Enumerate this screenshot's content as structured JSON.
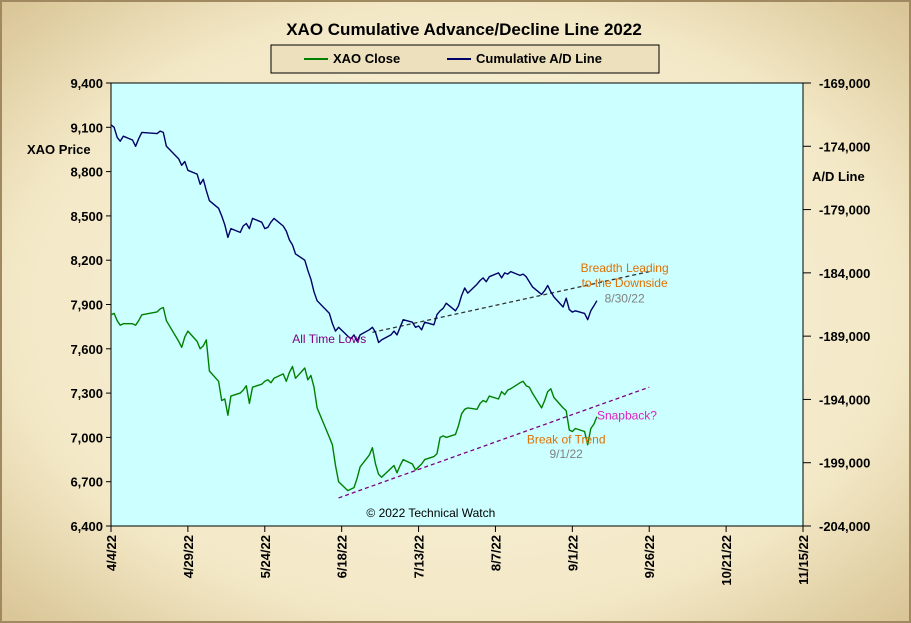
{
  "chart_data": {
    "type": "line",
    "title": "XAO Cumulative Advance/Decline Line 2022",
    "legend": [
      {
        "name": "XAO Close",
        "color": "#008000"
      },
      {
        "name": "Cumulative A/D Line",
        "color": "#000066"
      }
    ],
    "legend_position": "top-center",
    "ylabel_left": "XAO Price",
    "ylabel_right": "A/D Line",
    "ylim_left": [
      6400,
      9400
    ],
    "ylim_right": [
      -204000,
      -169000
    ],
    "y_ticks_left": [
      "9,400",
      "9,100",
      "8,800",
      "8,500",
      "8,200",
      "7,900",
      "7,600",
      "7,300",
      "7,000",
      "6,700",
      "6,400"
    ],
    "y_ticks_right": [
      "-169,000",
      "-174,000",
      "-179,000",
      "-184,000",
      "-189,000",
      "-194,000",
      "-199,000",
      "-204,000"
    ],
    "x_ticks": [
      "4/4/22",
      "4/29/22",
      "5/24/22",
      "6/18/22",
      "7/13/22",
      "8/7/22",
      "9/1/22",
      "9/26/22",
      "10/21/22",
      "11/15/22"
    ],
    "xlim": [
      "2022-04-04",
      "2022-11-15"
    ],
    "grid": false,
    "plot_background": "#ccffff",
    "series": [
      {
        "name": "XAO Close",
        "axis": "left",
        "color": "#008000",
        "points": [
          [
            "2022-04-04",
            7830
          ],
          [
            "2022-04-05",
            7840
          ],
          [
            "2022-04-06",
            7790
          ],
          [
            "2022-04-07",
            7760
          ],
          [
            "2022-04-08",
            7770
          ],
          [
            "2022-04-11",
            7770
          ],
          [
            "2022-04-12",
            7760
          ],
          [
            "2022-04-13",
            7790
          ],
          [
            "2022-04-14",
            7830
          ],
          [
            "2022-04-19",
            7850
          ],
          [
            "2022-04-20",
            7870
          ],
          [
            "2022-04-21",
            7880
          ],
          [
            "2022-04-22",
            7790
          ],
          [
            "2022-04-26",
            7650
          ],
          [
            "2022-04-27",
            7610
          ],
          [
            "2022-04-28",
            7680
          ],
          [
            "2022-04-29",
            7720
          ],
          [
            "2022-05-02",
            7650
          ],
          [
            "2022-05-03",
            7600
          ],
          [
            "2022-05-04",
            7620
          ],
          [
            "2022-05-05",
            7660
          ],
          [
            "2022-05-06",
            7450
          ],
          [
            "2022-05-09",
            7380
          ],
          [
            "2022-05-10",
            7250
          ],
          [
            "2022-05-11",
            7260
          ],
          [
            "2022-05-12",
            7150
          ],
          [
            "2022-05-13",
            7280
          ],
          [
            "2022-05-16",
            7300
          ],
          [
            "2022-05-17",
            7320
          ],
          [
            "2022-05-18",
            7350
          ],
          [
            "2022-05-19",
            7230
          ],
          [
            "2022-05-20",
            7340
          ],
          [
            "2022-05-23",
            7360
          ],
          [
            "2022-05-24",
            7380
          ],
          [
            "2022-05-25",
            7390
          ],
          [
            "2022-05-26",
            7370
          ],
          [
            "2022-05-27",
            7400
          ],
          [
            "2022-05-30",
            7430
          ],
          [
            "2022-05-31",
            7380
          ],
          [
            "2022-06-01",
            7440
          ],
          [
            "2022-06-02",
            7480
          ],
          [
            "2022-06-03",
            7400
          ],
          [
            "2022-06-06",
            7470
          ],
          [
            "2022-06-07",
            7390
          ],
          [
            "2022-06-08",
            7420
          ],
          [
            "2022-06-09",
            7340
          ],
          [
            "2022-06-10",
            7200
          ],
          [
            "2022-06-14",
            7000
          ],
          [
            "2022-06-15",
            6950
          ],
          [
            "2022-06-16",
            6810
          ],
          [
            "2022-06-17",
            6700
          ],
          [
            "2022-06-20",
            6640
          ],
          [
            "2022-06-21",
            6650
          ],
          [
            "2022-06-22",
            6660
          ],
          [
            "2022-06-23",
            6720
          ],
          [
            "2022-06-24",
            6800
          ],
          [
            "2022-06-27",
            6880
          ],
          [
            "2022-06-28",
            6930
          ],
          [
            "2022-06-29",
            6820
          ],
          [
            "2022-06-30",
            6750
          ],
          [
            "2022-07-01",
            6730
          ],
          [
            "2022-07-04",
            6790
          ],
          [
            "2022-07-05",
            6810
          ],
          [
            "2022-07-06",
            6760
          ],
          [
            "2022-07-07",
            6810
          ],
          [
            "2022-07-08",
            6850
          ],
          [
            "2022-07-11",
            6820
          ],
          [
            "2022-07-12",
            6780
          ],
          [
            "2022-07-13",
            6800
          ],
          [
            "2022-07-14",
            6820
          ],
          [
            "2022-07-15",
            6850
          ],
          [
            "2022-07-18",
            6870
          ],
          [
            "2022-07-19",
            6890
          ],
          [
            "2022-07-20",
            7000
          ],
          [
            "2022-07-21",
            7010
          ],
          [
            "2022-07-22",
            7000
          ],
          [
            "2022-07-25",
            7020
          ],
          [
            "2022-07-26",
            7080
          ],
          [
            "2022-07-27",
            7160
          ],
          [
            "2022-07-28",
            7190
          ],
          [
            "2022-07-29",
            7200
          ],
          [
            "2022-08-01",
            7190
          ],
          [
            "2022-08-02",
            7230
          ],
          [
            "2022-08-03",
            7250
          ],
          [
            "2022-08-04",
            7240
          ],
          [
            "2022-08-05",
            7280
          ],
          [
            "2022-08-08",
            7260
          ],
          [
            "2022-08-09",
            7310
          ],
          [
            "2022-08-10",
            7290
          ],
          [
            "2022-08-11",
            7320
          ],
          [
            "2022-08-12",
            7330
          ],
          [
            "2022-08-15",
            7370
          ],
          [
            "2022-08-16",
            7380
          ],
          [
            "2022-08-17",
            7350
          ],
          [
            "2022-08-18",
            7340
          ],
          [
            "2022-08-19",
            7300
          ],
          [
            "2022-08-22",
            7200
          ],
          [
            "2022-08-23",
            7250
          ],
          [
            "2022-08-24",
            7310
          ],
          [
            "2022-08-25",
            7330
          ],
          [
            "2022-08-26",
            7270
          ],
          [
            "2022-08-29",
            7200
          ],
          [
            "2022-08-30",
            7180
          ],
          [
            "2022-08-31",
            7050
          ],
          [
            "2022-09-01",
            7040
          ],
          [
            "2022-09-02",
            7060
          ],
          [
            "2022-09-05",
            7040
          ],
          [
            "2022-09-06",
            6950
          ],
          [
            "2022-09-07",
            7060
          ],
          [
            "2022-09-08",
            7090
          ],
          [
            "2022-09-09",
            7140
          ]
        ]
      },
      {
        "name": "Cumulative A/D Line",
        "axis": "right",
        "color": "#000066",
        "points": [
          [
            "2022-04-04",
            -172300
          ],
          [
            "2022-04-05",
            -172500
          ],
          [
            "2022-04-06",
            -173300
          ],
          [
            "2022-04-07",
            -173600
          ],
          [
            "2022-04-08",
            -173200
          ],
          [
            "2022-04-11",
            -173500
          ],
          [
            "2022-04-12",
            -174000
          ],
          [
            "2022-04-13",
            -173400
          ],
          [
            "2022-04-14",
            -172900
          ],
          [
            "2022-04-19",
            -173000
          ],
          [
            "2022-04-20",
            -172800
          ],
          [
            "2022-04-21",
            -172900
          ],
          [
            "2022-04-22",
            -174000
          ],
          [
            "2022-04-26",
            -175000
          ],
          [
            "2022-04-27",
            -175500
          ],
          [
            "2022-04-28",
            -175200
          ],
          [
            "2022-04-29",
            -175900
          ],
          [
            "2022-05-02",
            -176200
          ],
          [
            "2022-05-03",
            -177000
          ],
          [
            "2022-05-04",
            -176600
          ],
          [
            "2022-05-05",
            -177500
          ],
          [
            "2022-05-06",
            -178300
          ],
          [
            "2022-05-09",
            -178900
          ],
          [
            "2022-05-10",
            -179500
          ],
          [
            "2022-05-11",
            -180200
          ],
          [
            "2022-05-12",
            -181200
          ],
          [
            "2022-05-13",
            -180500
          ],
          [
            "2022-05-16",
            -180800
          ],
          [
            "2022-05-17",
            -180300
          ],
          [
            "2022-05-18",
            -180100
          ],
          [
            "2022-05-19",
            -180500
          ],
          [
            "2022-05-20",
            -179700
          ],
          [
            "2022-05-23",
            -180000
          ],
          [
            "2022-05-24",
            -180500
          ],
          [
            "2022-05-25",
            -180400
          ],
          [
            "2022-05-26",
            -180000
          ],
          [
            "2022-05-27",
            -179700
          ],
          [
            "2022-05-30",
            -180300
          ],
          [
            "2022-05-31",
            -180700
          ],
          [
            "2022-06-01",
            -181400
          ],
          [
            "2022-06-02",
            -181800
          ],
          [
            "2022-06-03",
            -182500
          ],
          [
            "2022-06-06",
            -183000
          ],
          [
            "2022-06-07",
            -183800
          ],
          [
            "2022-06-08",
            -184500
          ],
          [
            "2022-06-09",
            -185500
          ],
          [
            "2022-06-10",
            -186200
          ],
          [
            "2022-06-14",
            -187200
          ],
          [
            "2022-06-15",
            -188000
          ],
          [
            "2022-06-16",
            -188600
          ],
          [
            "2022-06-17",
            -188300
          ],
          [
            "2022-06-20",
            -189000
          ],
          [
            "2022-06-21",
            -189200
          ],
          [
            "2022-06-22",
            -188900
          ],
          [
            "2022-06-23",
            -189400
          ],
          [
            "2022-06-24",
            -188900
          ],
          [
            "2022-06-27",
            -188500
          ],
          [
            "2022-06-28",
            -188300
          ],
          [
            "2022-06-29",
            -188700
          ],
          [
            "2022-06-30",
            -189500
          ],
          [
            "2022-07-01",
            -189300
          ],
          [
            "2022-07-04",
            -188900
          ],
          [
            "2022-07-05",
            -188600
          ],
          [
            "2022-07-06",
            -188900
          ],
          [
            "2022-07-07",
            -188300
          ],
          [
            "2022-07-08",
            -187700
          ],
          [
            "2022-07-11",
            -187900
          ],
          [
            "2022-07-12",
            -188300
          ],
          [
            "2022-07-13",
            -188200
          ],
          [
            "2022-07-14",
            -188500
          ],
          [
            "2022-07-15",
            -187900
          ],
          [
            "2022-07-18",
            -188100
          ],
          [
            "2022-07-19",
            -187300
          ],
          [
            "2022-07-20",
            -187000
          ],
          [
            "2022-07-21",
            -186800
          ],
          [
            "2022-07-22",
            -186400
          ],
          [
            "2022-07-25",
            -187000
          ],
          [
            "2022-07-26",
            -186600
          ],
          [
            "2022-07-27",
            -185800
          ],
          [
            "2022-07-28",
            -185200
          ],
          [
            "2022-07-29",
            -185600
          ],
          [
            "2022-08-01",
            -184900
          ],
          [
            "2022-08-02",
            -184600
          ],
          [
            "2022-08-03",
            -184400
          ],
          [
            "2022-08-04",
            -184700
          ],
          [
            "2022-08-05",
            -184300
          ],
          [
            "2022-08-08",
            -184000
          ],
          [
            "2022-08-09",
            -184400
          ],
          [
            "2022-08-10",
            -184000
          ],
          [
            "2022-08-11",
            -184100
          ],
          [
            "2022-08-12",
            -183900
          ],
          [
            "2022-08-15",
            -184200
          ],
          [
            "2022-08-16",
            -184100
          ],
          [
            "2022-08-17",
            -184300
          ],
          [
            "2022-08-18",
            -184700
          ],
          [
            "2022-08-19",
            -185100
          ],
          [
            "2022-08-22",
            -185700
          ],
          [
            "2022-08-23",
            -185400
          ],
          [
            "2022-08-24",
            -185000
          ],
          [
            "2022-08-25",
            -185500
          ],
          [
            "2022-08-26",
            -185900
          ],
          [
            "2022-08-29",
            -186700
          ],
          [
            "2022-08-30",
            -186000
          ],
          [
            "2022-08-31",
            -186900
          ],
          [
            "2022-09-01",
            -187100
          ],
          [
            "2022-09-02",
            -187000
          ],
          [
            "2022-09-05",
            -187200
          ],
          [
            "2022-09-06",
            -187700
          ],
          [
            "2022-09-07",
            -187000
          ],
          [
            "2022-09-08",
            -186600
          ],
          [
            "2022-09-09",
            -186200
          ]
        ]
      }
    ],
    "trendlines": [
      {
        "name": "upper-trendline",
        "axis": "right",
        "color": "#333333",
        "from": [
          "2022-06-28",
          -188700
        ],
        "to": [
          "2022-09-26",
          -183900
        ]
      },
      {
        "name": "lower-trendline",
        "axis": "left",
        "color": "#800080",
        "from": [
          "2022-06-17",
          6590
        ],
        "to": [
          "2022-09-26",
          7340
        ]
      }
    ],
    "annotations": [
      {
        "name": "all-time-lows",
        "text": "All Time Lows",
        "color": "#800080",
        "x": "2022-06-26",
        "y": 7640,
        "axis": "left",
        "anchor": "end"
      },
      {
        "name": "breadth-leading-1",
        "text": "Breadth Leading",
        "color": "#e07000",
        "x": "2022-09-18",
        "y": 8120,
        "axis": "left",
        "anchor": "middle"
      },
      {
        "name": "breadth-leading-2",
        "text": "to the Downside",
        "color": "#e07000",
        "x": "2022-09-18",
        "y": 8020,
        "axis": "left",
        "anchor": "middle"
      },
      {
        "name": "breadth-date",
        "text": "8/30/22",
        "color": "#808080",
        "x": "2022-09-18",
        "y": 7915,
        "axis": "left",
        "anchor": "middle"
      },
      {
        "name": "snapback",
        "text": "Snapback?",
        "color": "#e020c0",
        "x": "2022-09-09",
        "y": 7120,
        "axis": "left",
        "anchor": "start"
      },
      {
        "name": "break-of-trend",
        "text": "Break of Trend",
        "color": "#e07000",
        "x": "2022-08-30",
        "y": 6960,
        "axis": "left",
        "anchor": "middle"
      },
      {
        "name": "break-date",
        "text": "9/1/22",
        "color": "#808080",
        "x": "2022-08-30",
        "y": 6860,
        "axis": "left",
        "anchor": "middle"
      },
      {
        "name": "copyright",
        "text": "© 2022 Technical Watch",
        "color": "#000000",
        "x": "2022-07-17",
        "y": 6460,
        "axis": "left",
        "anchor": "middle"
      }
    ]
  }
}
